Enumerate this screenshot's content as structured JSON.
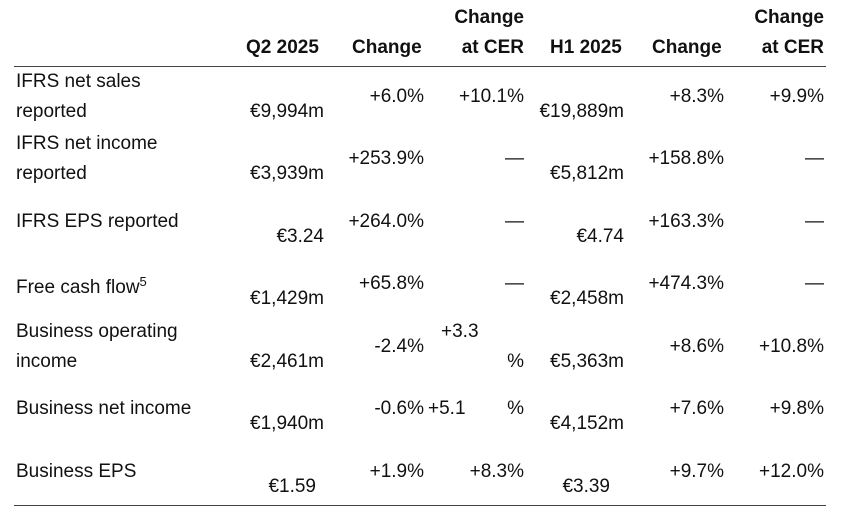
{
  "headers": {
    "q2": "Q2 2025",
    "q2_change": "Change",
    "q2_cer_line1": "Change",
    "q2_cer_line2": "at CER",
    "h1": "H1 2025",
    "h1_change": "Change",
    "h1_cer_line1": "Change",
    "h1_cer_line2": "at CER"
  },
  "rows": [
    {
      "label1": "IFRS net sales",
      "label2": "reported",
      "q2": "€9,994m",
      "q2_change": "+6.0%",
      "q2_cer": "+10.1%",
      "h1": "€19,889m",
      "h1_change": "+8.3%",
      "h1_cer": "+9.9%"
    },
    {
      "label1": "IFRS net income",
      "label2": "reported",
      "q2": "€3,939m",
      "q2_change": "+253.9%",
      "q2_cer": "—",
      "h1": "€5,812m",
      "h1_change": "+158.8%",
      "h1_cer": "—"
    },
    {
      "label1": "IFRS EPS reported",
      "q2": "€3.24",
      "q2_change": "+264.0%",
      "q2_cer": "—",
      "h1": "€4.74",
      "h1_change": "+163.3%",
      "h1_cer": "—"
    },
    {
      "label1": "Free cash flow",
      "footnote": "5",
      "q2": "€1,429m",
      "q2_change": "+65.8%",
      "q2_cer": "—",
      "h1": "€2,458m",
      "h1_change": "+474.3%",
      "h1_cer": "—"
    },
    {
      "label1": "Business operating",
      "label2": "income",
      "q2": "€2,461m",
      "q2_change": "-2.4%",
      "q2_cer_a": "+3.3",
      "q2_cer_b": "%",
      "h1": "€5,363m",
      "h1_change": "+8.6%",
      "h1_cer": "+10.8%"
    },
    {
      "label1": "Business net income",
      "q2": "€1,940m",
      "q2_change": "-0.6%",
      "q2_cer_a": "+5.1",
      "q2_cer_b": "%",
      "h1": "€4,152m",
      "h1_change": "+7.6%",
      "h1_cer": "+9.8%"
    },
    {
      "label1": "Business EPS",
      "q2": "€1.59",
      "q2_change": "+1.9%",
      "q2_cer": "+8.3%",
      "h1": "€3.39",
      "h1_change": "+9.7%",
      "h1_cer": "+12.0%"
    }
  ]
}
